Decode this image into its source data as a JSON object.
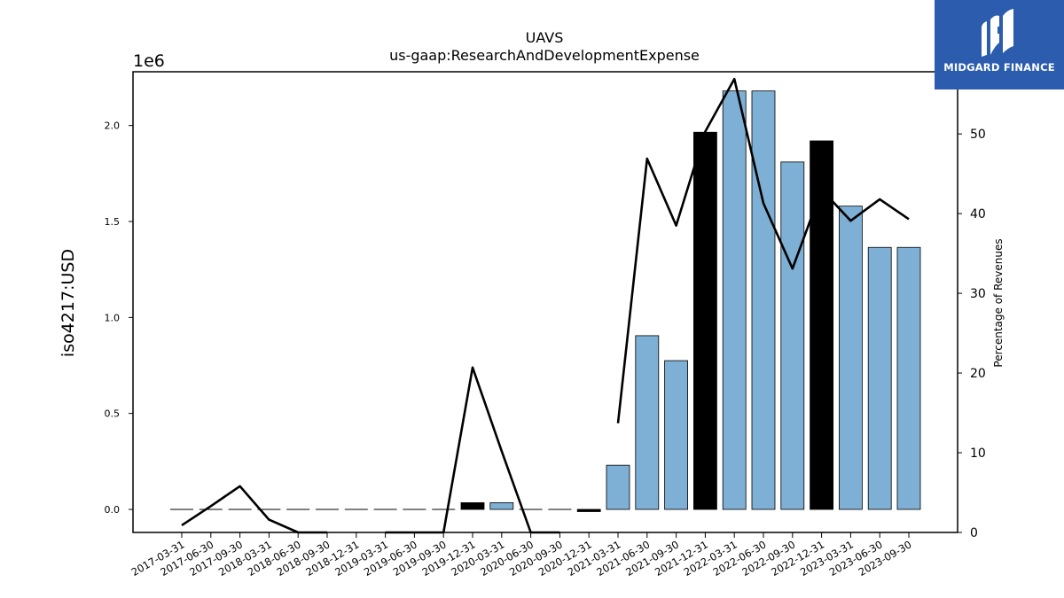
{
  "brand": {
    "name": "MIDGARD FINANCE"
  },
  "chart_data": {
    "type": "bar+line",
    "title": "UAVS",
    "subtitle": "us-gaap:ResearchAndDevelopmentExpense",
    "ylabel_left": "iso4217:USD",
    "ylabel_right": "Percentage of Revenues",
    "left_scale_label": "1e6",
    "categories": [
      "2017-03-31",
      "2017-06-30",
      "2017-09-30",
      "2018-03-31",
      "2018-06-30",
      "2018-09-30",
      "2018-12-31",
      "2019-03-31",
      "2019-06-30",
      "2019-09-30",
      "2019-12-31",
      "2020-03-31",
      "2020-06-30",
      "2020-09-30",
      "2020-12-31",
      "2021-03-31",
      "2021-06-30",
      "2021-09-30",
      "2021-12-31",
      "2022-03-31",
      "2022-06-30",
      "2022-09-30",
      "2022-12-31",
      "2023-03-31",
      "2023-06-30",
      "2023-09-30"
    ],
    "bars": {
      "unit": "millions USD",
      "values": [
        0,
        0,
        0,
        0,
        0,
        0,
        0,
        0,
        0,
        0,
        0.035,
        0.035,
        0,
        0,
        -0.005,
        0.23,
        0.905,
        0.775,
        1.965,
        2.18,
        2.18,
        1.81,
        1.92,
        1.58,
        1.365,
        1.365
      ],
      "highlight": [
        false,
        false,
        false,
        false,
        false,
        false,
        false,
        false,
        false,
        false,
        true,
        false,
        false,
        false,
        true,
        false,
        false,
        false,
        true,
        false,
        false,
        false,
        true,
        false,
        false,
        false
      ],
      "color": "#7eafd4",
      "highlight_color": "#000000"
    },
    "line": {
      "unit": "percent",
      "values": [
        0.9,
        3.3,
        5.8,
        1.6,
        0,
        0,
        null,
        0,
        0,
        0,
        20.7,
        10.2,
        0,
        0,
        null,
        13.7,
        46.9,
        38.5,
        50.3,
        56.9,
        41.3,
        33.1,
        43.0,
        39.1,
        41.8,
        39.3
      ],
      "color": "#000000"
    },
    "ylim_left": [
      -0.12,
      2.28
    ],
    "yticks_left": [
      "0.0",
      "0.5",
      "1.0",
      "1.5",
      "2.0"
    ],
    "ylim_right": [
      0,
      57.8
    ],
    "yticks_right": [
      "0",
      "10",
      "20",
      "30",
      "40",
      "50"
    ],
    "grid": false,
    "legend": "none"
  }
}
